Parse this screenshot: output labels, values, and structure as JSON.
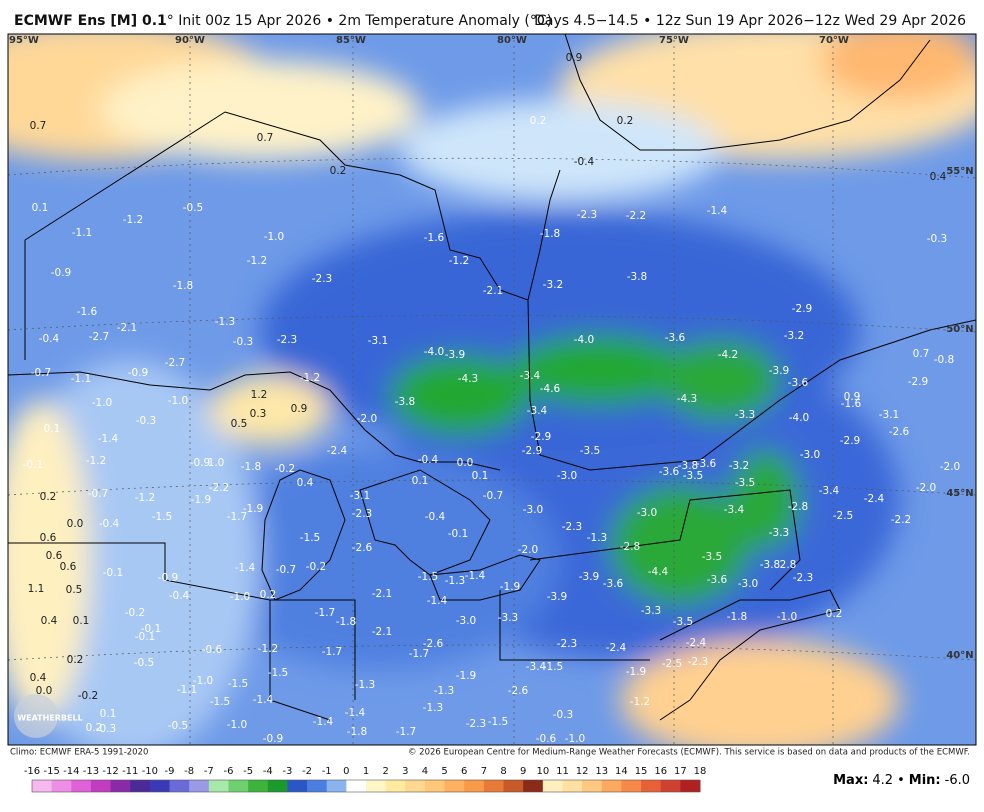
{
  "header": {
    "title_bold": "ECMWF Ens [M] 0.1",
    "title_rest": "° Init 00z 15 Apr 2026 • 2m Temperature Anomaly (°C)",
    "right": "Days 4.5−14.5 • 12z Sun 19 Apr 2026−12z Wed 29 Apr 2026"
  },
  "map": {
    "lon_labels": [
      "95°W",
      "90°W",
      "85°W",
      "80°W",
      "75°W",
      "70°W"
    ],
    "lat_labels": [
      "55°N",
      "50°N",
      "45°N",
      "40°N"
    ],
    "labels": [
      "0.7",
      "0.7",
      "0.2",
      "0.9",
      "0.2",
      "-0.4",
      "0.2",
      "0.1",
      "-1.2",
      "-0.5",
      "-1.1",
      "-1.0",
      "-1.6",
      "-1.8",
      "-2.3",
      "-2.2",
      "-1.4",
      "-1.2",
      "-1.2",
      "-0.9",
      "-1.8",
      "-2.3",
      "-2.1",
      "-3.2",
      "-3.8",
      "-0.3",
      "0.4",
      "-1.6",
      "-1.3",
      "-2.1",
      "-2.7",
      "-0.4",
      "-0.3",
      "-2.3",
      "-3.1",
      "-4.0",
      "-3.9",
      "-4.0",
      "-3.6",
      "-4.2",
      "-2.9",
      "-3.2",
      "0.7",
      "-0.8",
      "-2.7",
      "-0.7",
      "-1.1",
      "-0.9",
      "-1.2",
      "-4.3",
      "-3.4",
      "-4.6",
      "-3.9",
      "-3.6",
      "-2.9",
      "-1.0",
      "-1.0",
      "1.2",
      "-3.8",
      "-3.4",
      "-4.3",
      "0.9",
      "-1.6",
      "0.1",
      "-0.3",
      "0.3",
      "0.9",
      "0.5",
      "-2.0",
      "-3.3",
      "-4.0",
      "-3.1",
      "-1.4",
      "-2.9",
      "-2.9",
      "-2.6",
      "-0.1",
      "-1.2",
      "-0.9",
      "1.0",
      "-1.8",
      "-0.2",
      "-2.4",
      "-0.4",
      "0.0",
      "-2.9",
      "-3.5",
      "-3.6",
      "-3.8",
      "-3.6",
      "-3.2",
      "-3.0",
      "-2.0",
      "0.2",
      "-0.7",
      "-1.2",
      "-2.2",
      "-1.9",
      "0.4",
      "-3.1",
      "0.1",
      "0.1",
      "-0.7",
      "-3.0",
      "-3.5",
      "-3.5",
      "-3.4",
      "-2.4",
      "-2.0",
      "0.0",
      "-0.4",
      "-1.5",
      "-1.7",
      "-1.9",
      "-2.3",
      "-0.4",
      "-3.0",
      "-3.0",
      "-3.4",
      "-2.8",
      "-2.5",
      "-2.2",
      "0.6",
      "-1.5",
      "-0.1",
      "-2.3",
      "-1.3",
      "-3.3",
      "0.6",
      "-2.6",
      "-2.0",
      "-2.8",
      "0.6",
      "-0.1",
      "-0.9",
      "-1.4",
      "-0.7",
      "-0.2",
      "-1.5",
      "-1.3",
      "-1.4",
      "-3.9",
      "-3.6",
      "-4.4",
      "-3.5",
      "-3.6",
      "-3.0",
      "-3.8",
      "2.8",
      "-2.3",
      "1.1",
      "0.5",
      "-0.4",
      "-1.0",
      "0.2",
      "-2.1",
      "-1.4",
      "-1.9",
      "-3.9",
      "-0.2",
      "-1.7",
      "-1.8",
      "0.4",
      "0.1",
      "-3.3",
      "-1.8",
      "-1.0",
      "0.2",
      "-0.1",
      "-0.1",
      "-2.1",
      "-3.0",
      "-3.3",
      "-3.5",
      "-0.6",
      "-1.2",
      "-1.7",
      "-2.6",
      "-1.7",
      "-2.3",
      "-2.4",
      "-2.4",
      "0.2",
      "-0.5",
      "-1.5",
      "-3.4",
      "-1.5",
      "-1.9",
      "-2.5",
      "-2.3",
      "0.4",
      "-1.0",
      "-1.1",
      "-1.5",
      "-1.3",
      "-1.9",
      "-1.3",
      "-2.6",
      "0.0",
      "-0.2",
      "-1.5",
      "-1.4",
      "-1.3",
      "-1.4",
      "-0.3",
      "-1.2",
      "-1.4",
      "-2.3",
      "-1.5",
      "0.1",
      "0.2",
      "-0.3",
      "-0.5",
      "-1.0",
      "-1.8",
      "-1.7",
      "-0.6",
      "-1.0",
      "-0.9"
    ],
    "logo": "WEATHERBELL"
  },
  "footer": {
    "climo": "Climo: ECMWF ERA-5 1991-2020",
    "copyright": "© 2026 European Centre for Medium-Range Weather Forecasts (ECMWF). This service is based on data and products of the ECMWF.",
    "stats_max_label": "Max:",
    "stats_max": "4.2",
    "stats_sep": "•",
    "stats_min_label": "Min:",
    "stats_min": "-6.0"
  },
  "colorbar": {
    "ticks": [
      -16,
      -15,
      -14,
      -13,
      -12,
      -11,
      -10,
      -9,
      -8,
      -7,
      -6,
      -5,
      -4,
      -3,
      -2,
      -1,
      0,
      1,
      2,
      3,
      4,
      5,
      6,
      7,
      8,
      9,
      10,
      11,
      12,
      13,
      14,
      15,
      16,
      17,
      18
    ],
    "colors": [
      "#f6b8ee",
      "#ee8ee4",
      "#e060d8",
      "#c23cc0",
      "#8a2aa8",
      "#4a2a98",
      "#3a3ab8",
      "#6a6ad8",
      "#9a9ae8",
      "#a8e8a8",
      "#6ed06e",
      "#3cb43c",
      "#1a9a2a",
      "#2a56c8",
      "#4a7ee0",
      "#8ab4f0",
      "#ffffff",
      "#fff6c8",
      "#ffeaa0",
      "#ffd890",
      "#ffc878",
      "#ffb060",
      "#f89a48",
      "#e87a38",
      "#c85a28",
      "#8a2a18",
      "#fff0c0",
      "#ffe0a0",
      "#ffc880",
      "#ffa860",
      "#f88848",
      "#e86038",
      "#d04030",
      "#b02020"
    ]
  }
}
